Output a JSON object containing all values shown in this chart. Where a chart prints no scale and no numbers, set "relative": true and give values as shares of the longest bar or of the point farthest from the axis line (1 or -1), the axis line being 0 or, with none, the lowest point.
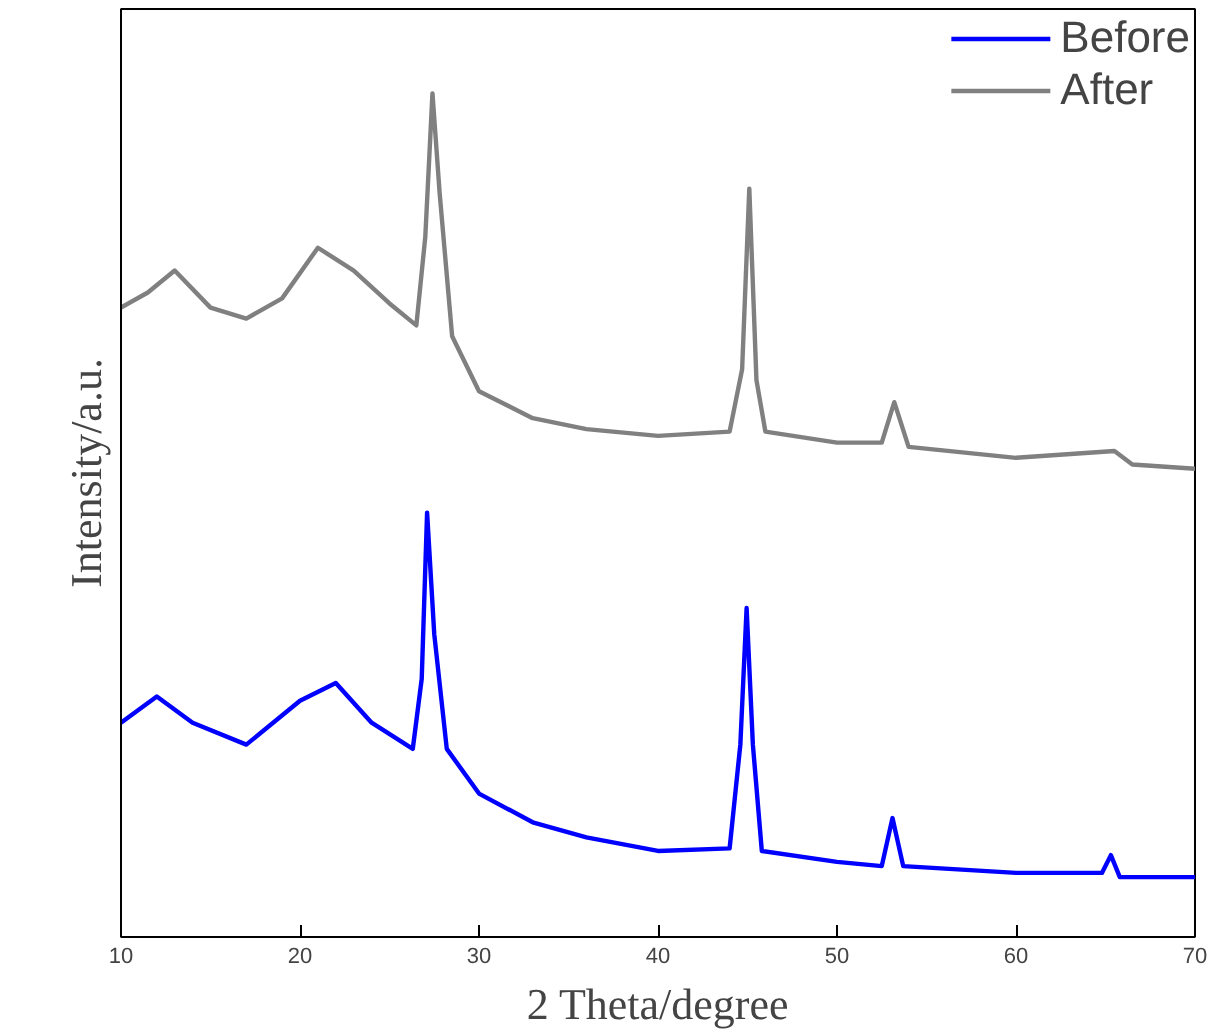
{
  "chart_data": {
    "type": "line",
    "relative": true,
    "xlabel": "2 Theta/degree",
    "ylabel": "Intensity/a.u.",
    "xlim": [
      10,
      70
    ],
    "xticks": [
      10,
      20,
      30,
      40,
      50,
      60,
      70
    ],
    "legend": "top right",
    "grid": false,
    "tick_labels": "x",
    "series": [
      {
        "name": "Before",
        "color": "#0000ff",
        "x": [
          10,
          12,
          14,
          17,
          20,
          22,
          24,
          26.3,
          26.8,
          27.1,
          27.5,
          28.2,
          30,
          33,
          36,
          40,
          44,
          44.6,
          44.95,
          45.3,
          45.8,
          50,
          52.5,
          53.1,
          53.7,
          60,
          64.8,
          65.3,
          65.8,
          70
        ],
        "values": [
          0.254,
          0.285,
          0.254,
          0.228,
          0.28,
          0.301,
          0.254,
          0.223,
          0.306,
          0.503,
          0.359,
          0.223,
          0.17,
          0.136,
          0.118,
          0.102,
          0.105,
          0.228,
          0.39,
          0.228,
          0.102,
          0.089,
          0.084,
          0.141,
          0.084,
          0.076,
          0.076,
          0.097,
          0.071,
          0.071
        ]
      },
      {
        "name": "After",
        "color": "#808080",
        "x": [
          10,
          11.5,
          13,
          15,
          17,
          19,
          21,
          23,
          25,
          26.5,
          27,
          27.4,
          27.8,
          28.5,
          30,
          33,
          36,
          40,
          44,
          44.7,
          45.1,
          45.5,
          46,
          50,
          52.5,
          53.2,
          54,
          60,
          65.5,
          66.5,
          70
        ],
        "values": [
          0.746,
          0.764,
          0.79,
          0.746,
          0.733,
          0.757,
          0.817,
          0.79,
          0.751,
          0.725,
          0.83,
          1.0,
          0.882,
          0.712,
          0.647,
          0.615,
          0.602,
          0.594,
          0.599,
          0.673,
          0.887,
          0.66,
          0.599,
          0.586,
          0.586,
          0.634,
          0.581,
          0.568,
          0.576,
          0.56,
          0.555
        ]
      }
    ]
  }
}
